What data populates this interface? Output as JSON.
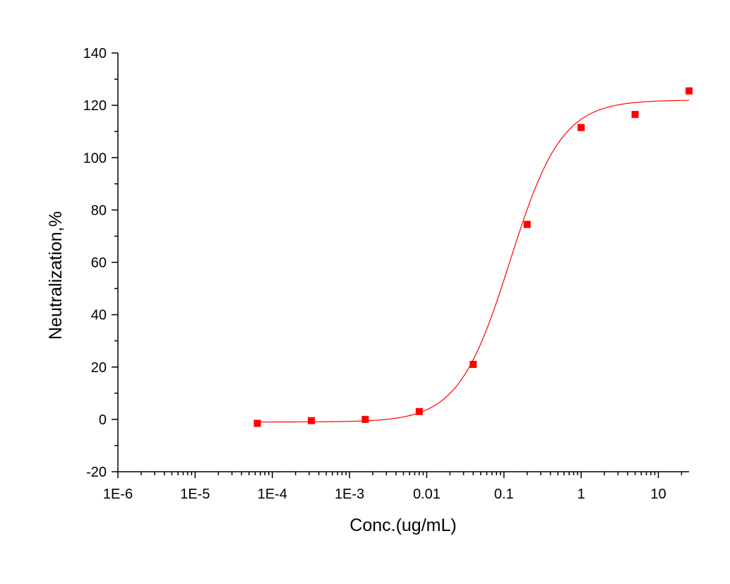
{
  "chart_data": {
    "type": "scatter",
    "xlabel": "Conc.(ug/mL)",
    "ylabel": "Neutralization,%",
    "x_scale": "log",
    "xlim": [
      1e-06,
      25
    ],
    "ylim": [
      -20,
      140
    ],
    "x_ticks": [
      1e-06,
      1e-05,
      0.0001,
      0.001,
      0.01,
      0.1,
      1,
      10
    ],
    "x_tick_labels": [
      "1E-6",
      "1E-5",
      "1E-4",
      "1E-3",
      "0.01",
      "0.1",
      "1",
      "10"
    ],
    "y_ticks": [
      -20,
      0,
      20,
      40,
      60,
      80,
      100,
      120,
      140
    ],
    "y_tick_labels": [
      "-20",
      "0",
      "20",
      "40",
      "60",
      "80",
      "100",
      "120",
      "140"
    ],
    "grid": false,
    "legend": "none",
    "series": [
      {
        "marker": "square",
        "color": "#ff0000",
        "x": [
          6.4e-05,
          0.00032,
          0.0016,
          0.008,
          0.04,
          0.2,
          1,
          5,
          25
        ],
        "y": [
          -1.5,
          -0.5,
          0,
          3,
          21,
          74.5,
          111.5,
          116.5,
          125.5
        ]
      }
    ],
    "fit_curve": {
      "color": "#ff0000",
      "model": "4PL",
      "bottom": -1,
      "top": 122,
      "ec50": 0.12,
      "hill": 1.3,
      "x_range": [
        6.4e-05,
        25
      ]
    }
  }
}
